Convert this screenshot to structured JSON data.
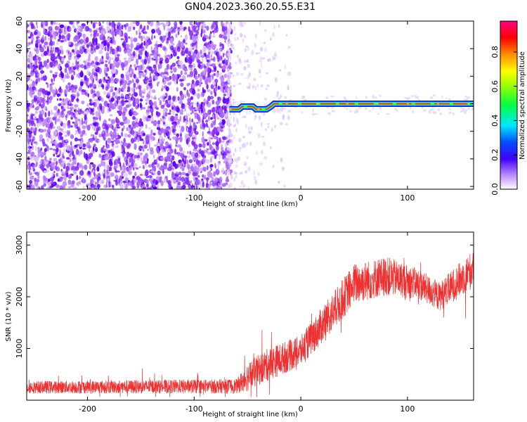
{
  "title": "GN04.2023.360.20.55.E31",
  "chart_data": [
    {
      "type": "heatmap",
      "xlabel": "Height of straight line (km)",
      "ylabel": "Frequency (Hz)",
      "xlim": [
        -257,
        162
      ],
      "ylim": [
        -62,
        60
      ],
      "xticks": [
        -200,
        -100,
        0,
        100
      ],
      "yticks": [
        -60,
        -40,
        -20,
        0,
        20,
        40,
        60
      ],
      "colorbar": {
        "label": "Normalized spectral amplitude",
        "ticks": [
          0.0,
          0.2,
          0.4,
          0.6,
          0.8
        ],
        "range": [
          0,
          0.98
        ]
      },
      "ridge": [
        {
          "x": -67,
          "y": -4
        },
        {
          "x": -58,
          "y": -4
        },
        {
          "x": -55,
          "y": -2
        },
        {
          "x": -45,
          "y": -2
        },
        {
          "x": -42,
          "y": -4
        },
        {
          "x": -32,
          "y": -4
        },
        {
          "x": -28,
          "y": -2
        },
        {
          "x": -25,
          "y": 0
        },
        {
          "x": 162,
          "y": 0
        }
      ]
    },
    {
      "type": "line",
      "xlabel": "Height of straight line (km)",
      "ylabel": "SNR (10 * v/v)",
      "xlim": [
        -257,
        162
      ],
      "ylim": [
        0,
        3250
      ],
      "xticks": [
        -200,
        -100,
        0,
        100
      ],
      "yticks": [
        1000,
        2000,
        3000
      ],
      "series_color": "#ee3030",
      "envelope": [
        {
          "x": -257,
          "mean": 250,
          "amp": 120
        },
        {
          "x": -160,
          "mean": 260,
          "amp": 130
        },
        {
          "x": -60,
          "mean": 270,
          "amp": 140
        },
        {
          "x": -50,
          "mean": 450,
          "amp": 280
        },
        {
          "x": -30,
          "mean": 700,
          "amp": 320
        },
        {
          "x": 0,
          "mean": 950,
          "amp": 300
        },
        {
          "x": 30,
          "mean": 1700,
          "amp": 380
        },
        {
          "x": 50,
          "mean": 2250,
          "amp": 400
        },
        {
          "x": 80,
          "mean": 2400,
          "amp": 380
        },
        {
          "x": 110,
          "mean": 2250,
          "amp": 300
        },
        {
          "x": 130,
          "mean": 2000,
          "amp": 280
        },
        {
          "x": 162,
          "mean": 2550,
          "amp": 380
        }
      ]
    }
  ]
}
